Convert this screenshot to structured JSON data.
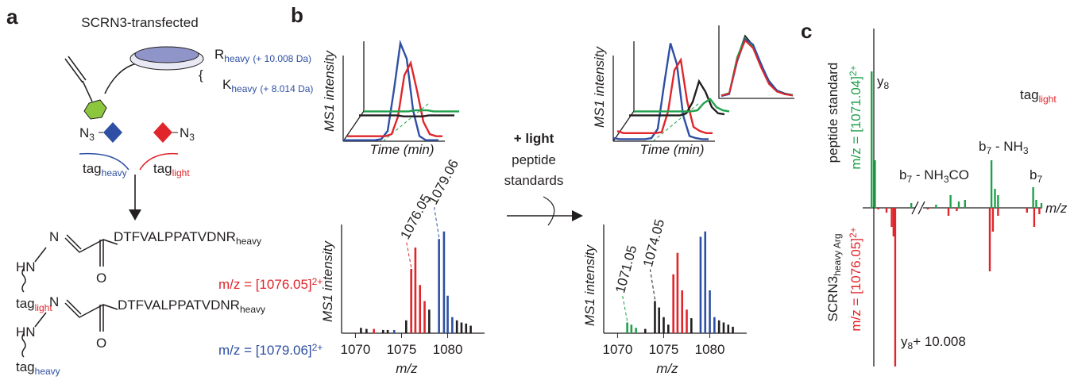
{
  "panel_a": {
    "letter": "a",
    "title": "SCRN3-transfected",
    "r": "R",
    "r_sub": "heavy",
    "r_shift": "(+ 10.008 Da)",
    "k": "K",
    "k_sub": "heavy",
    "k_shift": "(+ 8.014 Da)",
    "azide_left": "N",
    "azide_left_sub": "3",
    "azide_right": "N",
    "azide_right_sub": "3",
    "tag_heavy": "tag",
    "tag_heavy_sub": "heavy",
    "tag_light": "tag",
    "tag_light_sub": "light",
    "product_light": {
      "amine": "HN",
      "imine": "N",
      "oxygen": "O",
      "peptide": "DTFVALPPATVDNR",
      "peptide_sub": "heavy",
      "tag": "tag",
      "tag_sub": "light",
      "mz": "m/z = [1076.05]",
      "mz_sup": "2+"
    },
    "product_heavy": {
      "amine": "HN",
      "imine": "N",
      "oxygen": "O",
      "peptide": "DTFVALPPATVDNR",
      "peptide_sub": "heavy",
      "tag": "tag",
      "tag_sub": "heavy",
      "mz": "m/z = [1079.06]",
      "mz_sup": "2+"
    }
  },
  "panel_b": {
    "letter": "b",
    "arrow_label_bold": "+ light",
    "arrow_label_1": "peptide",
    "arrow_label_2": "standards",
    "left": {
      "chromatogram": {
        "y_label": "MS1 intensity",
        "x_label": "Time (min)",
        "ylim": [
          0,
          100
        ],
        "series": [
          {
            "color": "#2e4fa3",
            "values": [
              1,
              1,
              1,
              1,
              1,
              1,
              2,
              10,
              50,
              95,
              80,
              30,
              5,
              1,
              1,
              1
            ]
          },
          {
            "color": "#e0252b",
            "values": [
              1,
              1,
              1,
              1,
              1,
              1,
              1,
              3,
              20,
              60,
              72,
              45,
              15,
              3,
              1,
              1
            ]
          },
          {
            "color": "#231f20",
            "values": [
              2,
              2,
              2,
              2,
              2,
              2,
              2,
              1,
              1,
              1,
              1,
              2,
              2,
              2,
              2,
              2
            ]
          },
          {
            "color": "#20a04b",
            "values": [
              2,
              2,
              2,
              2,
              2,
              2,
              2,
              2,
              3,
              3,
              3,
              2,
              2,
              2,
              2,
              2
            ]
          }
        ]
      },
      "spectrum": {
        "y_label": "MS1 intensity",
        "x_label": "m/z",
        "xlim": [
          1068.5,
          1084
        ],
        "ylim": [
          0,
          100
        ],
        "xticks": [
          1070,
          1075,
          1080
        ],
        "series": [
          {
            "color": "#231f20",
            "x": [
              1070.6,
              1071.2,
              1073.0,
              1073.5,
              1075.5,
              1078.0,
              1081.0,
              1081.5,
              1082.0,
              1082.5
            ],
            "values": [
              5,
              4,
              3,
              3,
              12,
              22,
              12,
              10,
              9,
              7
            ]
          },
          {
            "color": "#e0252b",
            "x": [
              1072.0,
              1076.05,
              1076.5,
              1077.0,
              1077.5
            ],
            "values": [
              4,
              60,
              80,
              45,
              30
            ]
          },
          {
            "color": "#2e4fa3",
            "x": [
              1074.2,
              1079.06,
              1079.6,
              1080.0,
              1080.5
            ],
            "values": [
              3,
              88,
              95,
              35,
              15
            ]
          }
        ],
        "peak_labels": [
          1076.05,
          1079.06
        ],
        "peak_label_colors": [
          "#e0252b",
          "#2e4fa3"
        ]
      }
    },
    "right": {
      "chromatogram": {
        "y_label": "MS1 intensity",
        "x_label": "Time (min)",
        "ylim": [
          0,
          100
        ],
        "series": [
          {
            "color": "#2e4fa3",
            "values": [
              3,
              2,
              2,
              2,
              2,
              2,
              3,
              12,
              55,
              95,
              75,
              25,
              5,
              3,
              2,
              2
            ]
          },
          {
            "color": "#e0252b",
            "values": [
              6,
              4,
              4,
              4,
              4,
              4,
              4,
              5,
              25,
              65,
              75,
              35,
              10,
              6,
              4,
              4
            ]
          },
          {
            "color": "#231f20",
            "values": [
              2,
              2,
              2,
              2,
              2,
              2,
              2,
              2,
              2,
              4,
              15,
              35,
              25,
              10,
              4,
              3
            ]
          },
          {
            "color": "#20a04b",
            "values": [
              2,
              2,
              2,
              2,
              2,
              2,
              2,
              2,
              2,
              2,
              3,
              10,
              14,
              6,
              3,
              2
            ]
          }
        ],
        "inset_series": [
          {
            "color": "#231f20",
            "values": [
              2,
              5,
              60,
              95,
              80,
              50,
              25,
              10,
              5,
              3
            ]
          },
          {
            "color": "#20a04b",
            "values": [
              2,
              6,
              62,
              92,
              78,
              48,
              22,
              9,
              4,
              3
            ]
          },
          {
            "color": "#2e4fa3",
            "values": [
              1,
              4,
              55,
              90,
              82,
              52,
              24,
              10,
              4,
              2
            ]
          },
          {
            "color": "#e0252b",
            "values": [
              2,
              5,
              58,
              88,
              76,
              46,
              20,
              8,
              4,
              2
            ]
          }
        ]
      },
      "spectrum": {
        "y_label": "MS1 intensity",
        "x_label": "m/z",
        "xlim": [
          1068.5,
          1084
        ],
        "ylim": [
          0,
          100
        ],
        "xticks": [
          1070,
          1075,
          1080
        ],
        "series": [
          {
            "color": "#20a04b",
            "x": [
              1071.05,
              1071.5,
              1072.0
            ],
            "values": [
              10,
              8,
              5
            ]
          },
          {
            "color": "#231f20",
            "x": [
              1073.0,
              1074.05,
              1074.5,
              1075.0,
              1075.5,
              1078.0,
              1081.0,
              1081.5,
              1082.0,
              1082.5
            ],
            "values": [
              4,
              30,
              24,
              15,
              8,
              14,
              12,
              10,
              8,
              6
            ]
          },
          {
            "color": "#e0252b",
            "x": [
              1076.05,
              1076.5,
              1077.0,
              1077.5
            ],
            "values": [
              55,
              75,
              40,
              22
            ]
          },
          {
            "color": "#2e4fa3",
            "x": [
              1079.0,
              1079.5,
              1080.0,
              1080.5
            ],
            "values": [
              90,
              95,
              40,
              15
            ]
          }
        ],
        "peak_labels": [
          1071.05,
          1074.05
        ],
        "peak_label_colors": [
          "#20a04b",
          "#231f20"
        ]
      }
    }
  },
  "panel_c": {
    "letter": "c",
    "top_label": "peptide standard",
    "top_mz": "m/z = [1071.04]",
    "top_mz_sup": "2+",
    "bottom_label": "SCRN3",
    "bottom_label_sub": "heavy Arg",
    "bottom_mz": "m/z = [1076.05]",
    "bottom_mz_sup": "2+",
    "tag": "tag",
    "tag_sub": "light",
    "y8": "y",
    "y8_sub": "8",
    "b7_nh3": "b",
    "b7_nh3_sub": "7",
    "b7_nh3_rest": " - NH",
    "b7_nh3_sub2": "3",
    "b7_nh3co": "b",
    "b7_nh3co_sub": "7",
    "b7_nh3co_rest": " - NH",
    "b7_nh3co_sub2": "3",
    "b7_nh3co_end": "CO",
    "b7": "b",
    "b7_sub": "7",
    "x_label": "m/z",
    "y8_heavy": "y",
    "y8_heavy_sub": "8",
    "y8_heavy_rest": "+ 10.008",
    "xlim": [
      0,
      100
    ],
    "ylim": [
      -100,
      100
    ],
    "series": [
      {
        "color": "#20a04b",
        "x": [
          2.8,
          4.4,
          22,
          34,
          41,
          45,
          48,
          60.8,
          62.5,
          64,
          81,
          82.5,
          85
        ],
        "values": [
          86,
          30,
          3,
          2,
          8,
          4,
          5,
          30,
          12,
          8,
          13,
          5,
          3
        ]
      },
      {
        "color": "#e0252b",
        "x": [
          6,
          10,
          12.5,
          13.4,
          14.2,
          30,
          40,
          44,
          60,
          61.5,
          64,
          78,
          81.5,
          84
        ],
        "values": [
          -1,
          -3,
          -12,
          -18,
          -100,
          -1,
          -5,
          -2,
          -40,
          -15,
          -5,
          -3,
          -12,
          -4
        ]
      }
    ]
  }
}
